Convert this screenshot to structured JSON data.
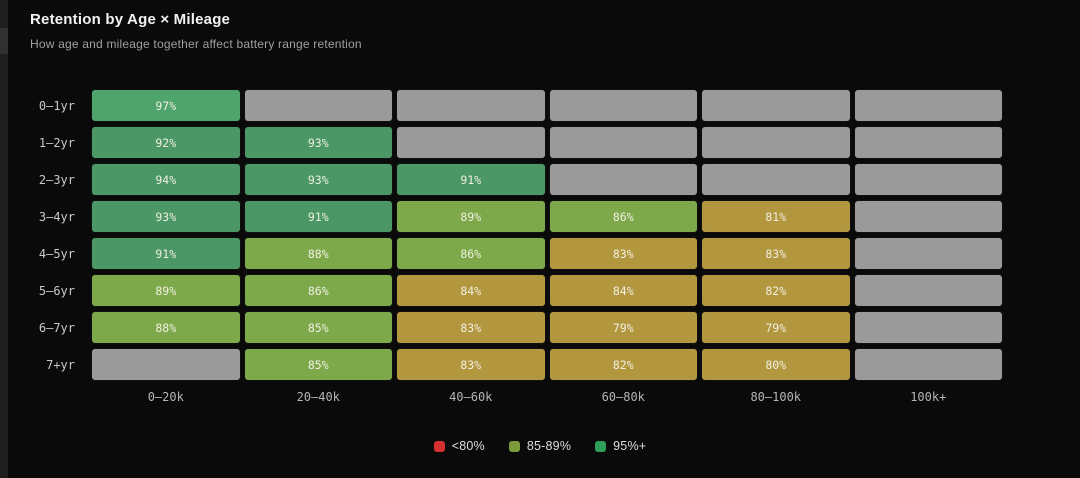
{
  "header": {
    "title": "Retention by Age × Mileage",
    "subtitle": "How age and mileage together affect battery range retention"
  },
  "chart_data": {
    "type": "heatmap",
    "title": "Retention by Age × Mileage",
    "rows": [
      "0–1yr",
      "1–2yr",
      "2–3yr",
      "3–4yr",
      "4–5yr",
      "5–6yr",
      "6–7yr",
      "7+yr"
    ],
    "columns": [
      "0–20k",
      "20–40k",
      "40–60k",
      "60–80k",
      "80–100k",
      "100k+"
    ],
    "values_pct": [
      [
        97,
        null,
        null,
        null,
        null,
        null
      ],
      [
        92,
        93,
        null,
        null,
        null,
        null
      ],
      [
        94,
        93,
        91,
        null,
        null,
        null
      ],
      [
        93,
        91,
        89,
        86,
        81,
        null
      ],
      [
        91,
        88,
        86,
        83,
        83,
        null
      ],
      [
        89,
        86,
        84,
        84,
        82,
        null
      ],
      [
        88,
        85,
        83,
        79,
        79,
        null
      ],
      [
        null,
        85,
        83,
        82,
        80,
        null
      ]
    ],
    "cell_label_suffix": "%",
    "cell_colors": {
      "p95": "#4fa46c",
      "p90": "#4b9766",
      "p85": "#7da94b",
      "p80": "#b3973e",
      "no_data": "#9a9a9a",
      "text": "#f0efe2"
    }
  },
  "legend": {
    "items": [
      {
        "label": "<80%",
        "color": "#d63031"
      },
      {
        "label": "85-89%",
        "color": "#7a9a3c"
      },
      {
        "label": "95%+",
        "color": "#2f9e57"
      }
    ]
  }
}
